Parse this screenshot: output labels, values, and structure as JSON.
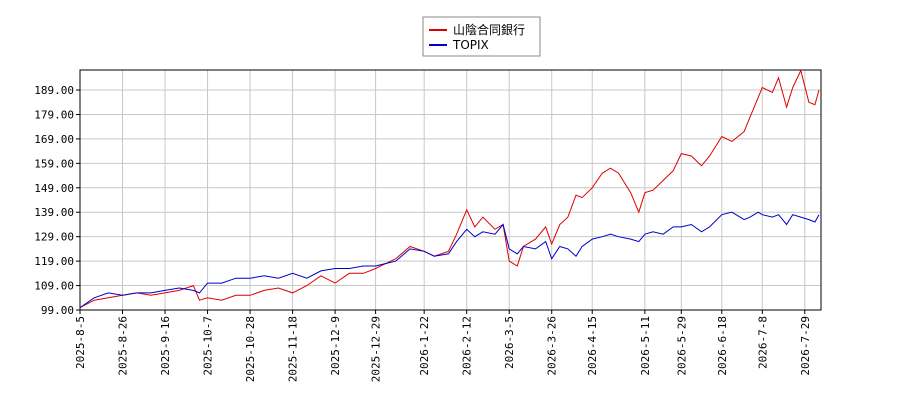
{
  "chart_data": {
    "type": "line",
    "x": [
      "2025-8-5",
      "2025-8-12",
      "2025-8-19",
      "2025-8-26",
      "2025-9-2",
      "2025-9-9",
      "2025-9-16",
      "2025-9-23",
      "2025-9-30",
      "2025-10-3",
      "2025-10-7",
      "2025-10-14",
      "2025-10-21",
      "2025-10-28",
      "2025-11-4",
      "2025-11-11",
      "2025-11-18",
      "2025-11-25",
      "2025-12-2",
      "2025-12-9",
      "2025-12-16",
      "2025-12-23",
      "2025-12-29",
      "2026-1-8",
      "2026-1-15",
      "2026-1-22",
      "2026-1-27",
      "2026-2-3",
      "2026-2-7",
      "2026-2-12",
      "2026-2-16",
      "2026-2-20",
      "2026-2-26",
      "2026-3-2",
      "2026-3-5",
      "2026-3-9",
      "2026-3-12",
      "2026-3-18",
      "2026-3-23",
      "2026-3-26",
      "2026-3-30",
      "2026-4-3",
      "2026-4-7",
      "2026-4-10",
      "2026-4-15",
      "2026-4-20",
      "2026-4-24",
      "2026-4-28",
      "2026-5-4",
      "2026-5-8",
      "2026-5-11",
      "2026-5-15",
      "2026-5-20",
      "2026-5-25",
      "2026-5-29",
      "2026-6-3",
      "2026-6-8",
      "2026-6-12",
      "2026-6-18",
      "2026-6-23",
      "2026-6-29",
      "2026-7-2",
      "2026-7-6",
      "2026-7-8",
      "2026-7-13",
      "2026-7-16",
      "2026-7-20",
      "2026-7-23",
      "2026-7-27",
      "2026-7-31",
      "2026-8-3",
      "2026-8-5"
    ],
    "series": [
      {
        "name": "山陰合同銀行",
        "color": "#dd0000",
        "values": [
          100,
          103,
          104,
          105,
          106,
          105,
          106,
          107,
          109,
          103,
          104,
          103,
          105,
          105,
          107,
          108,
          106,
          109,
          113,
          110,
          114,
          114,
          116,
          120,
          125,
          123,
          121,
          123,
          130,
          140,
          133,
          137,
          132,
          134,
          119,
          117,
          125,
          128,
          133,
          126,
          134,
          137,
          146,
          145,
          149,
          155,
          157,
          155,
          147,
          139,
          147,
          148,
          152,
          156,
          163,
          162,
          158,
          162,
          170,
          168,
          172,
          178,
          186,
          190,
          188,
          194,
          182,
          190,
          197,
          184,
          183,
          189
        ]
      },
      {
        "name": "TOPIX",
        "color": "#0000cc",
        "values": [
          100,
          104,
          106,
          105,
          106,
          106,
          107,
          108,
          107,
          106,
          110,
          110,
          112,
          112,
          113,
          112,
          114,
          112,
          115,
          116,
          116,
          117,
          117,
          119,
          124,
          123,
          121,
          122,
          127,
          132,
          129,
          131,
          130,
          134,
          124,
          122,
          125,
          124,
          127,
          120,
          125,
          124,
          121,
          125,
          128,
          129,
          130,
          129,
          128,
          127,
          130,
          131,
          130,
          133,
          133,
          134,
          131,
          133,
          138,
          139,
          136,
          137,
          139,
          138,
          137,
          138,
          134,
          138,
          137,
          136,
          135,
          138
        ]
      }
    ],
    "xlim": [
      "2025-8-5",
      "2026-8-6"
    ],
    "xticks": [
      "2025-8-5",
      "2025-8-26",
      "2025-9-16",
      "2025-10-7",
      "2025-10-28",
      "2025-11-18",
      "2025-12-9",
      "2025-12-29",
      "2026-1-22",
      "2026-2-12",
      "2026-3-5",
      "2026-3-26",
      "2026-4-15",
      "2026-5-11",
      "2026-5-29",
      "2026-6-18",
      "2026-7-8",
      "2026-7-29"
    ],
    "ylim": [
      99,
      197.2
    ],
    "yticks": [
      {
        "value": 99,
        "label": "99.00"
      },
      {
        "value": 109,
        "label": "109.00"
      },
      {
        "value": 119,
        "label": "119.00"
      },
      {
        "value": 129,
        "label": "129.00"
      },
      {
        "value": 139,
        "label": "139.00"
      },
      {
        "value": 149,
        "label": "149.00"
      },
      {
        "value": 159,
        "label": "159.00"
      },
      {
        "value": 169,
        "label": "169.00"
      },
      {
        "value": 179,
        "label": "179.00"
      },
      {
        "value": 189,
        "label": "189.00"
      }
    ],
    "grid": true
  }
}
